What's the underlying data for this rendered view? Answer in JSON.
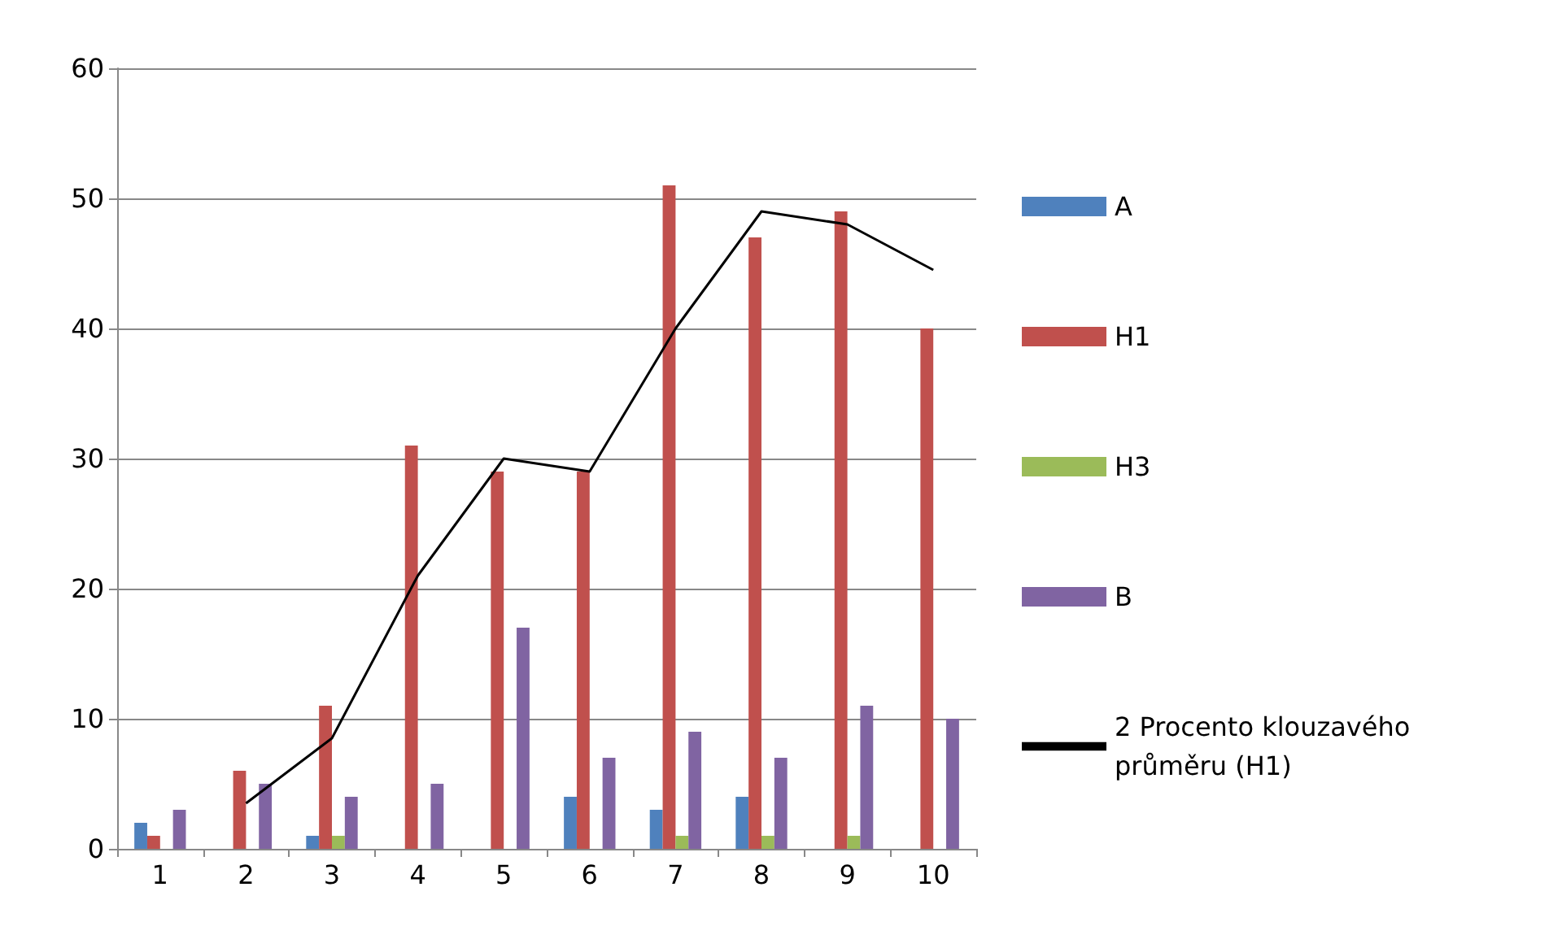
{
  "chart_data": {
    "type": "bar",
    "categories": [
      "1",
      "2",
      "3",
      "4",
      "5",
      "6",
      "7",
      "8",
      "9",
      "10"
    ],
    "series": [
      {
        "name": "A",
        "color": "#4f81bd",
        "values": [
          2,
          0,
          1,
          0,
          0,
          4,
          3,
          4,
          0,
          0
        ]
      },
      {
        "name": "H1",
        "color": "#c0504d",
        "values": [
          1,
          6,
          11,
          31,
          29,
          29,
          51,
          47,
          49,
          40
        ]
      },
      {
        "name": "H3",
        "color": "#9bbb59",
        "values": [
          0,
          0,
          1,
          0,
          0,
          0,
          1,
          1,
          1,
          0
        ]
      },
      {
        "name": "B",
        "color": "#8064a2",
        "values": [
          3,
          5,
          4,
          5,
          17,
          7,
          9,
          7,
          11,
          10
        ]
      },
      {
        "name": "2 Procento klouzavého průměru (H1)",
        "type": "line",
        "color": "#000000",
        "values": [
          null,
          3.5,
          8.5,
          21,
          30,
          29,
          40,
          49,
          48,
          44.5
        ]
      }
    ],
    "ylim": [
      0,
      60
    ],
    "yticks": [
      0,
      10,
      20,
      30,
      40,
      50,
      60
    ],
    "grid": "y",
    "legend": "right",
    "marker": "none"
  }
}
